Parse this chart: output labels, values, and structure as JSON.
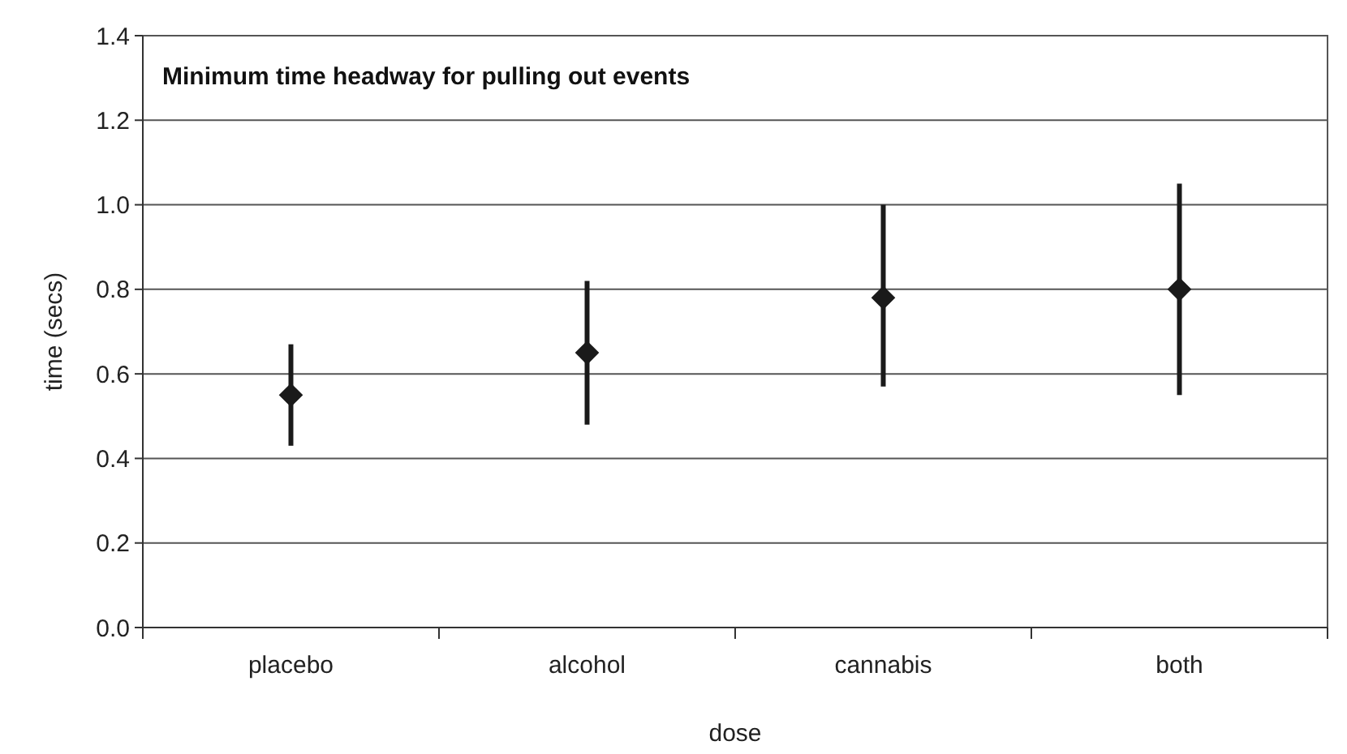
{
  "chart_data": {
    "type": "scatter",
    "title": "Minimum time headway for pulling out events",
    "xlabel": "dose",
    "ylabel": "time (secs)",
    "categories": [
      "placebo",
      "alcohol",
      "cannabis",
      "both"
    ],
    "values": [
      0.55,
      0.65,
      0.78,
      0.8
    ],
    "errors": [
      [
        0.43,
        0.67
      ],
      [
        0.48,
        0.82
      ],
      [
        0.57,
        1.0
      ],
      [
        0.55,
        1.05
      ]
    ],
    "color": "#1a1a1a",
    "marker": "diamond",
    "ylim": [
      0,
      1.4
    ],
    "yticks": [
      {
        "value": 0,
        "label": "0.0"
      },
      0.2,
      0.4,
      0.6,
      0.8,
      {
        "value": 1,
        "label": "1.0"
      },
      1.2,
      1.4
    ],
    "grid": "y"
  }
}
